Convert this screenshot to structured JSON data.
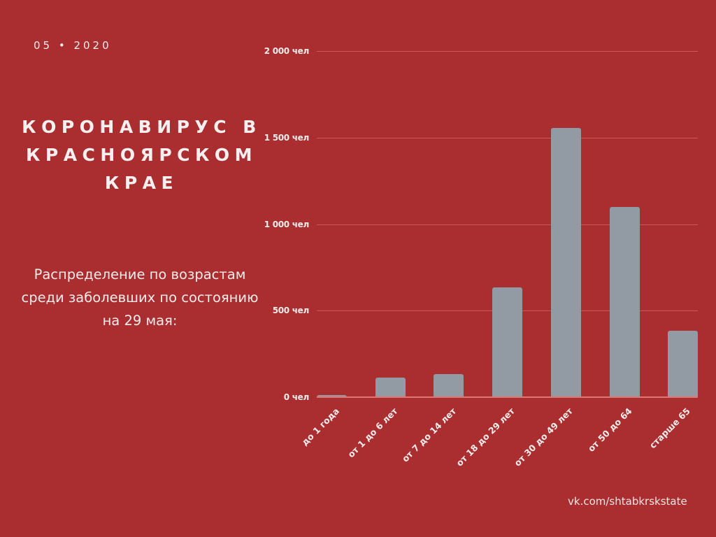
{
  "header": {
    "date": "05 • 2020",
    "title": "КОРОНАВИРУС В КРАСНОЯРСКОМ КРАЕ",
    "subtitle": "Распределение по возрастам среди заболевших по состоянию на 29 мая:"
  },
  "footer": {
    "link": "vk.com/shtabkrskstate"
  },
  "colors": {
    "background": "#aa2e2f",
    "bar": "#929aa3",
    "text": "#f6ecec",
    "gridline": "#c95a5a"
  },
  "chart_data": {
    "type": "bar",
    "title": "Распределение по возрастам среди заболевших по состоянию на 29 мая",
    "xlabel": "",
    "ylabel": "",
    "categories": [
      "до 1 года",
      "от 1 до 6 лет",
      "от 7 до 14 лет",
      "от 18 до 29 лет",
      "от 30 до 49 лет",
      "от 50 до 64",
      "старше 65"
    ],
    "values": [
      12,
      113,
      133,
      634,
      1556,
      1099,
      384
    ],
    "ylim": [
      0,
      2000
    ],
    "yticks": [
      0,
      500,
      1000,
      1500,
      2000
    ],
    "ytick_labels": [
      "0 чел",
      "500 чел",
      "1 000 чел",
      "1 500 чел",
      "2 000 чел"
    ],
    "grid": true,
    "legend": "none"
  }
}
